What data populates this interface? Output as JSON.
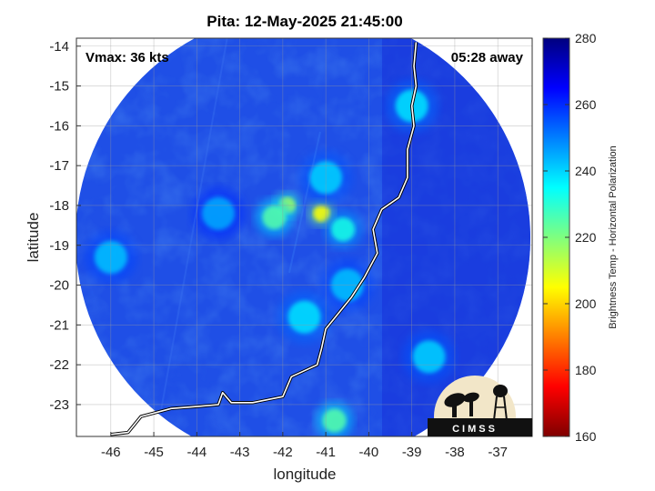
{
  "chart_data": {
    "type": "heatmap",
    "title": "Pita: 12-May-2025 21:45:00",
    "xlabel": "longitude",
    "ylabel": "latitude",
    "xlim": [
      -46.8,
      -36.2
    ],
    "ylim": [
      -23.8,
      -13.8
    ],
    "x_ticks": [
      "-46",
      "-45",
      "-44",
      "-43",
      "-42",
      "-41",
      "-40",
      "-39",
      "-38",
      "-37"
    ],
    "x_tick_values": [
      -46,
      -45,
      -44,
      -43,
      -42,
      -41,
      -40,
      -39,
      -38,
      -37
    ],
    "y_ticks": [
      "-14",
      "-15",
      "-16",
      "-17",
      "-18",
      "-19",
      "-20",
      "-21",
      "-22",
      "-23"
    ],
    "y_tick_values": [
      -14,
      -15,
      -16,
      -17,
      -18,
      -19,
      -20,
      -21,
      -22,
      -23
    ],
    "grid": true,
    "annotation_left": "Vmax: 36 kts",
    "annotation_right": "05:28 away",
    "colorbar": {
      "label": "Brightness Temp - Horizontal Polarization",
      "range": [
        160,
        280
      ],
      "ticks": [
        "280",
        "260",
        "240",
        "220",
        "200",
        "180",
        "160"
      ],
      "tick_values": [
        280,
        260,
        240,
        220,
        200,
        180,
        160
      ],
      "colormap": "jet",
      "colors": [
        "#7f0000",
        "#ff0000",
        "#ff7f00",
        "#ffff00",
        "#7fff7f",
        "#00ffff",
        "#007fff",
        "#0000ff",
        "#00007f"
      ]
    },
    "swath_center": [
      -41.5,
      -18.6
    ],
    "background_temp": 260,
    "features": [
      {
        "lon": -41.1,
        "lat": -18.2,
        "value": 205
      },
      {
        "lon": -41.9,
        "lat": -18.0,
        "value": 215
      },
      {
        "lon": -42.2,
        "lat": -18.3,
        "value": 225
      },
      {
        "lon": -40.6,
        "lat": -18.6,
        "value": 232
      },
      {
        "lon": -41.0,
        "lat": -17.3,
        "value": 240
      },
      {
        "lon": -41.5,
        "lat": -20.8,
        "value": 238
      },
      {
        "lon": -40.5,
        "lat": -20.0,
        "value": 242
      },
      {
        "lon": -38.6,
        "lat": -21.8,
        "value": 240
      },
      {
        "lon": -40.8,
        "lat": -23.4,
        "value": 225
      },
      {
        "lon": -43.5,
        "lat": -18.2,
        "value": 245
      },
      {
        "lon": -46.0,
        "lat": -19.3,
        "value": 242
      },
      {
        "lon": -39.0,
        "lat": -15.5,
        "value": 238
      }
    ],
    "coastline": [
      [
        -38.9,
        -13.9
      ],
      [
        -38.95,
        -14.5
      ],
      [
        -38.9,
        -15.0
      ],
      [
        -39.0,
        -15.5
      ],
      [
        -38.95,
        -16.0
      ],
      [
        -39.1,
        -16.6
      ],
      [
        -39.1,
        -17.3
      ],
      [
        -39.3,
        -17.8
      ],
      [
        -39.7,
        -18.1
      ],
      [
        -39.9,
        -18.6
      ],
      [
        -39.8,
        -19.2
      ],
      [
        -40.1,
        -19.8
      ],
      [
        -40.4,
        -20.3
      ],
      [
        -40.7,
        -20.7
      ],
      [
        -41.0,
        -21.1
      ],
      [
        -41.1,
        -21.6
      ],
      [
        -41.2,
        -22.0
      ],
      [
        -41.8,
        -22.3
      ],
      [
        -42.0,
        -22.8
      ],
      [
        -42.7,
        -22.95
      ],
      [
        -43.2,
        -22.95
      ],
      [
        -43.4,
        -22.7
      ],
      [
        -43.5,
        -23.0
      ],
      [
        -44.0,
        -23.05
      ],
      [
        -44.6,
        -23.1
      ],
      [
        -45.3,
        -23.3
      ],
      [
        -45.6,
        -23.7
      ],
      [
        -46.0,
        -23.75
      ]
    ],
    "logo_text": "CIMSS"
  }
}
